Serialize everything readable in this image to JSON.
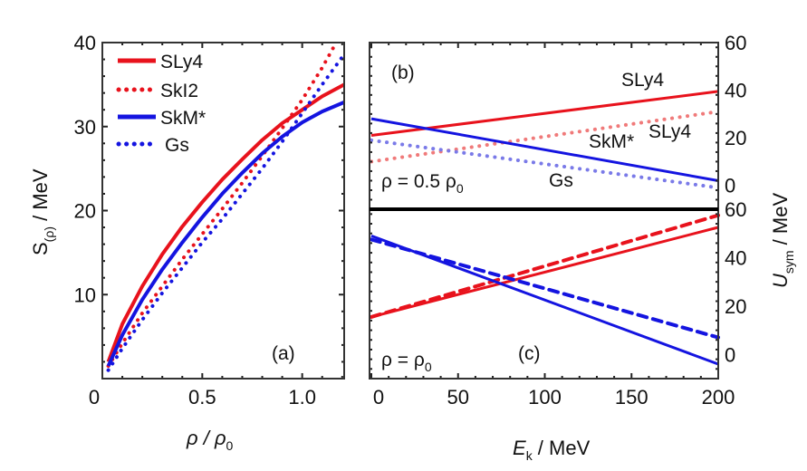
{
  "colors": {
    "red": "#e8121c",
    "blue": "#1414e0",
    "red_light": "#f07a7a",
    "blue_light": "#7a7ae8",
    "separator": "#000000"
  },
  "chart_data": [
    {
      "id": "a",
      "type": "line",
      "panel_label": "(a)",
      "xlabel": "ρ / ρ0",
      "xlabel_parts": {
        "main": "ρ / ρ",
        "sub": "0"
      },
      "ylabel": "S(ρ) / MeV",
      "ylabel_parts": {
        "main": "S",
        "sub": "(ρ)",
        "rest": " / MeV"
      },
      "xlim": [
        0,
        1.21
      ],
      "ylim": [
        0,
        40
      ],
      "xticks": [
        0,
        0.5,
        1.0
      ],
      "xtick_labels": [
        "0",
        "0.5",
        "1.0"
      ],
      "yticks": [
        10,
        20,
        30,
        40
      ],
      "ytick_labels": [
        "10",
        "20",
        "30",
        "40"
      ],
      "x0_label": "0",
      "legend_position": "top-left",
      "series": [
        {
          "name": "SLy4",
          "style": "solid",
          "color": "red",
          "x": [
            0.03,
            0.1,
            0.2,
            0.3,
            0.4,
            0.5,
            0.6,
            0.7,
            0.8,
            0.9,
            1.0,
            1.1,
            1.21
          ],
          "y": [
            2.0,
            6.5,
            11.0,
            14.8,
            18.1,
            21.0,
            23.7,
            26.1,
            28.4,
            30.4,
            32.0,
            33.6,
            35.0
          ]
        },
        {
          "name": "SkI2",
          "style": "dotted",
          "color": "red",
          "x": [
            0.03,
            0.1,
            0.2,
            0.3,
            0.4,
            0.5,
            0.6,
            0.7,
            0.8,
            0.9,
            1.0,
            1.1,
            1.17
          ],
          "y": [
            1.5,
            4.2,
            7.8,
            11.0,
            14.2,
            17.2,
            20.2,
            23.3,
            26.5,
            29.8,
            33.2,
            37.0,
            40.0
          ]
        },
        {
          "name": "SkM*",
          "style": "solid",
          "color": "blue",
          "x": [
            0.03,
            0.1,
            0.2,
            0.3,
            0.4,
            0.5,
            0.6,
            0.7,
            0.8,
            0.9,
            1.0,
            1.1,
            1.21
          ],
          "y": [
            1.5,
            5.2,
            9.4,
            13.0,
            16.2,
            19.2,
            22.0,
            24.5,
            26.8,
            28.8,
            30.5,
            31.8,
            32.9
          ]
        },
        {
          "name": "Gs",
          "style": "dotted",
          "color": "blue",
          "x": [
            0.03,
            0.1,
            0.2,
            0.3,
            0.4,
            0.5,
            0.6,
            0.7,
            0.8,
            0.9,
            1.0,
            1.1,
            1.21
          ],
          "y": [
            1.0,
            3.6,
            7.0,
            10.2,
            13.2,
            16.2,
            19.0,
            22.0,
            25.0,
            28.2,
            31.6,
            35.0,
            38.6
          ]
        }
      ]
    },
    {
      "id": "b",
      "type": "line",
      "panel_label": "(b)",
      "condition": {
        "main": "ρ = 0.5 ρ",
        "sub": "0"
      },
      "xlim": [
        0,
        200
      ],
      "ylim": [
        -10,
        60
      ],
      "yticks": [
        0,
        20,
        40,
        60
      ],
      "ytick_labels": [
        "0",
        "20",
        "40",
        "60"
      ],
      "annotations": [
        "SLy4",
        "SLy4",
        "SkM*",
        "Gs"
      ],
      "series": [
        {
          "name": "SLy4",
          "style": "solid",
          "color": "red",
          "x": [
            0,
            200
          ],
          "y": [
            21,
            39.5
          ]
        },
        {
          "name": "SLy4 (dotted)",
          "style": "dotted",
          "color": "red_light",
          "x": [
            0,
            200
          ],
          "y": [
            10,
            31
          ]
        },
        {
          "name": "SkM*",
          "style": "solid",
          "color": "blue",
          "x": [
            0,
            200
          ],
          "y": [
            28,
            2
          ]
        },
        {
          "name": "Gs",
          "style": "dotted",
          "color": "blue_light",
          "x": [
            0,
            200
          ],
          "y": [
            19,
            -1
          ]
        }
      ]
    },
    {
      "id": "c",
      "type": "line",
      "panel_label": "(c)",
      "condition": {
        "main": "ρ = ρ",
        "sub": "0"
      },
      "xlabel": "Ek / MeV",
      "xlabel_parts": {
        "main": "E",
        "sub": "k",
        "rest": " / MeV"
      },
      "ylabel": "Usym / MeV",
      "ylabel_parts": {
        "main": "U",
        "sub": "sym",
        "rest": " / MeV"
      },
      "xlim": [
        0,
        200
      ],
      "ylim": [
        -10,
        60
      ],
      "xticks": [
        0,
        50,
        100,
        150,
        200
      ],
      "xtick_labels": [
        "0",
        "50",
        "100",
        "150",
        "200"
      ],
      "yticks": [
        0,
        20,
        40,
        60
      ],
      "ytick_labels": [
        "0",
        "20",
        "40",
        "60"
      ],
      "series": [
        {
          "name": "red solid",
          "style": "solid",
          "color": "red",
          "x": [
            0,
            200
          ],
          "y": [
            15.5,
            52.5
          ]
        },
        {
          "name": "red dashed",
          "style": "dashed",
          "color": "red",
          "x": [
            0,
            200
          ],
          "y": [
            15.5,
            57.5
          ]
        },
        {
          "name": "blue solid",
          "style": "solid",
          "color": "blue",
          "x": [
            0,
            200
          ],
          "y": [
            49,
            -4
          ]
        },
        {
          "name": "blue dashed",
          "style": "dashed",
          "color": "blue",
          "x": [
            0,
            200
          ],
          "y": [
            47.5,
            7
          ]
        }
      ]
    }
  ]
}
